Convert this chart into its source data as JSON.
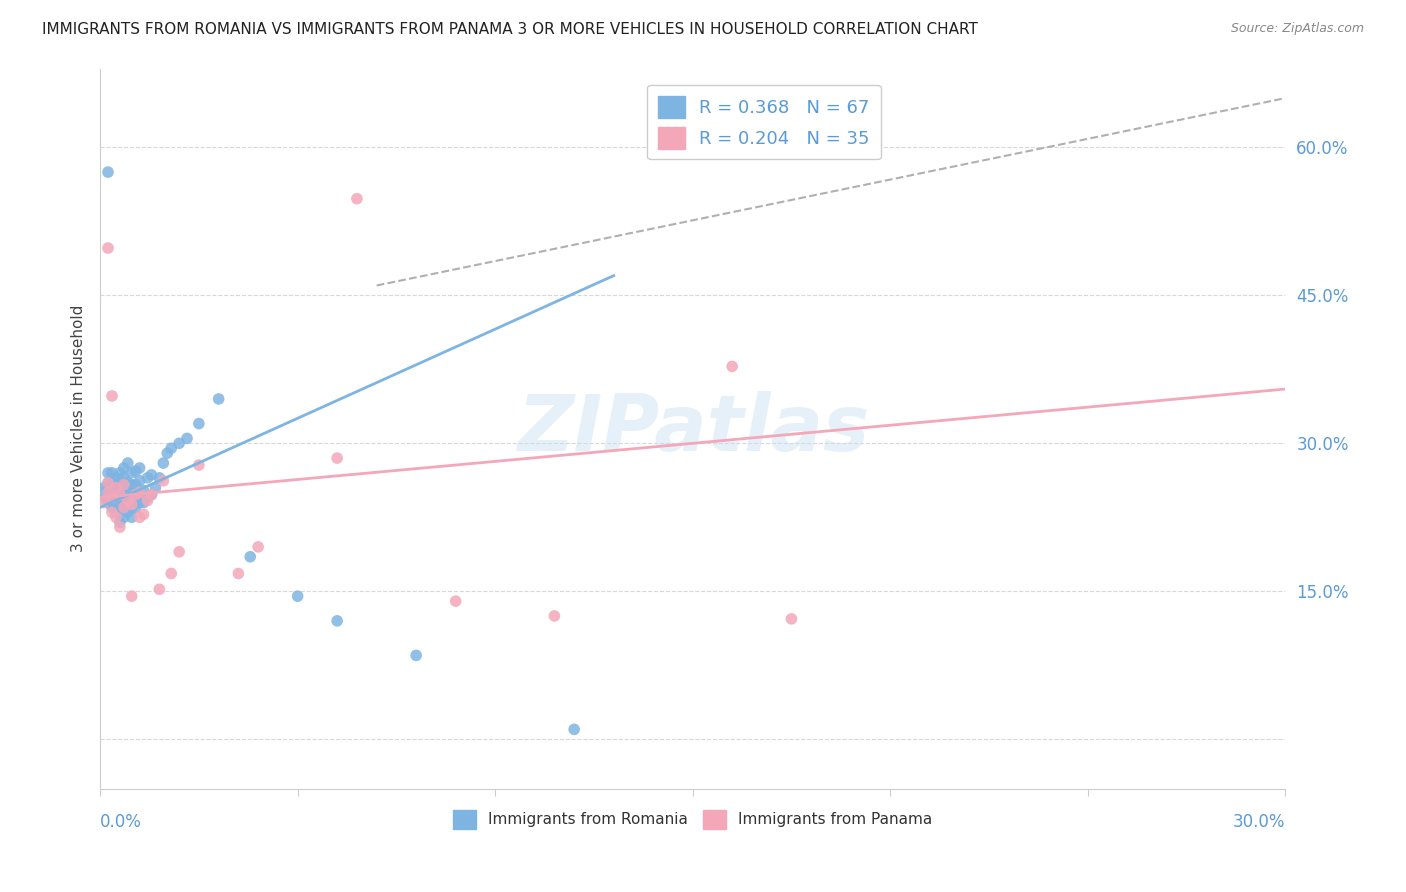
{
  "title": "IMMIGRANTS FROM ROMANIA VS IMMIGRANTS FROM PANAMA 3 OR MORE VEHICLES IN HOUSEHOLD CORRELATION CHART",
  "source": "Source: ZipAtlas.com",
  "ylabel": "3 or more Vehicles in Household",
  "ytick_vals": [
    0.0,
    0.15,
    0.3,
    0.45,
    0.6
  ],
  "ytick_labels": [
    "",
    "15.0%",
    "30.0%",
    "45.0%",
    "60.0%"
  ],
  "xlim": [
    0.0,
    0.3
  ],
  "ylim": [
    -0.05,
    0.68
  ],
  "romania_color": "#7eb4e2",
  "panama_color": "#f4a7b9",
  "romania_R": 0.368,
  "romania_N": 67,
  "panama_R": 0.204,
  "panama_N": 35,
  "romania_line_x": [
    0.0,
    0.13
  ],
  "romania_line_y": [
    0.235,
    0.47
  ],
  "panama_line_x": [
    0.0,
    0.3
  ],
  "panama_line_y": [
    0.245,
    0.355
  ],
  "dash_line_x": [
    0.07,
    0.3
  ],
  "dash_line_y": [
    0.46,
    0.65
  ],
  "romania_scatter_x": [
    0.001,
    0.001,
    0.002,
    0.002,
    0.002,
    0.002,
    0.002,
    0.003,
    0.003,
    0.003,
    0.003,
    0.003,
    0.004,
    0.004,
    0.004,
    0.004,
    0.005,
    0.005,
    0.005,
    0.005,
    0.005,
    0.005,
    0.006,
    0.006,
    0.006,
    0.006,
    0.006,
    0.006,
    0.007,
    0.007,
    0.007,
    0.007,
    0.007,
    0.008,
    0.008,
    0.008,
    0.008,
    0.008,
    0.009,
    0.009,
    0.009,
    0.009,
    0.01,
    0.01,
    0.01,
    0.01,
    0.011,
    0.011,
    0.012,
    0.012,
    0.013,
    0.013,
    0.014,
    0.015,
    0.016,
    0.017,
    0.018,
    0.02,
    0.022,
    0.025,
    0.03,
    0.038,
    0.05,
    0.06,
    0.08,
    0.12,
    0.002
  ],
  "romania_scatter_y": [
    0.245,
    0.255,
    0.24,
    0.25,
    0.255,
    0.26,
    0.27,
    0.235,
    0.245,
    0.255,
    0.26,
    0.27,
    0.23,
    0.24,
    0.255,
    0.265,
    0.22,
    0.235,
    0.245,
    0.255,
    0.26,
    0.27,
    0.225,
    0.235,
    0.245,
    0.255,
    0.265,
    0.275,
    0.23,
    0.24,
    0.25,
    0.26,
    0.28,
    0.225,
    0.235,
    0.248,
    0.258,
    0.27,
    0.235,
    0.245,
    0.258,
    0.272,
    0.24,
    0.25,
    0.262,
    0.275,
    0.24,
    0.252,
    0.245,
    0.265,
    0.248,
    0.268,
    0.255,
    0.265,
    0.28,
    0.29,
    0.295,
    0.3,
    0.305,
    0.32,
    0.345,
    0.185,
    0.145,
    0.12,
    0.085,
    0.01,
    0.575
  ],
  "panama_scatter_x": [
    0.001,
    0.002,
    0.002,
    0.003,
    0.003,
    0.004,
    0.004,
    0.005,
    0.005,
    0.006,
    0.006,
    0.007,
    0.008,
    0.009,
    0.01,
    0.01,
    0.011,
    0.012,
    0.013,
    0.015,
    0.016,
    0.018,
    0.02,
    0.025,
    0.035,
    0.04,
    0.06,
    0.065,
    0.09,
    0.115,
    0.16,
    0.175,
    0.002,
    0.003,
    0.008
  ],
  "panama_scatter_y": [
    0.24,
    0.25,
    0.26,
    0.23,
    0.245,
    0.225,
    0.255,
    0.215,
    0.248,
    0.235,
    0.258,
    0.242,
    0.238,
    0.248,
    0.225,
    0.25,
    0.228,
    0.242,
    0.248,
    0.152,
    0.262,
    0.168,
    0.19,
    0.278,
    0.168,
    0.195,
    0.285,
    0.548,
    0.14,
    0.125,
    0.378,
    0.122,
    0.498,
    0.348,
    0.145
  ],
  "watermark": "ZIPatlas",
  "background_color": "#ffffff",
  "grid_color": "#d8d8d8",
  "title_fontsize": 11,
  "tick_label_color": "#5b9bd5",
  "legend_text_color": "#5b9bd5"
}
